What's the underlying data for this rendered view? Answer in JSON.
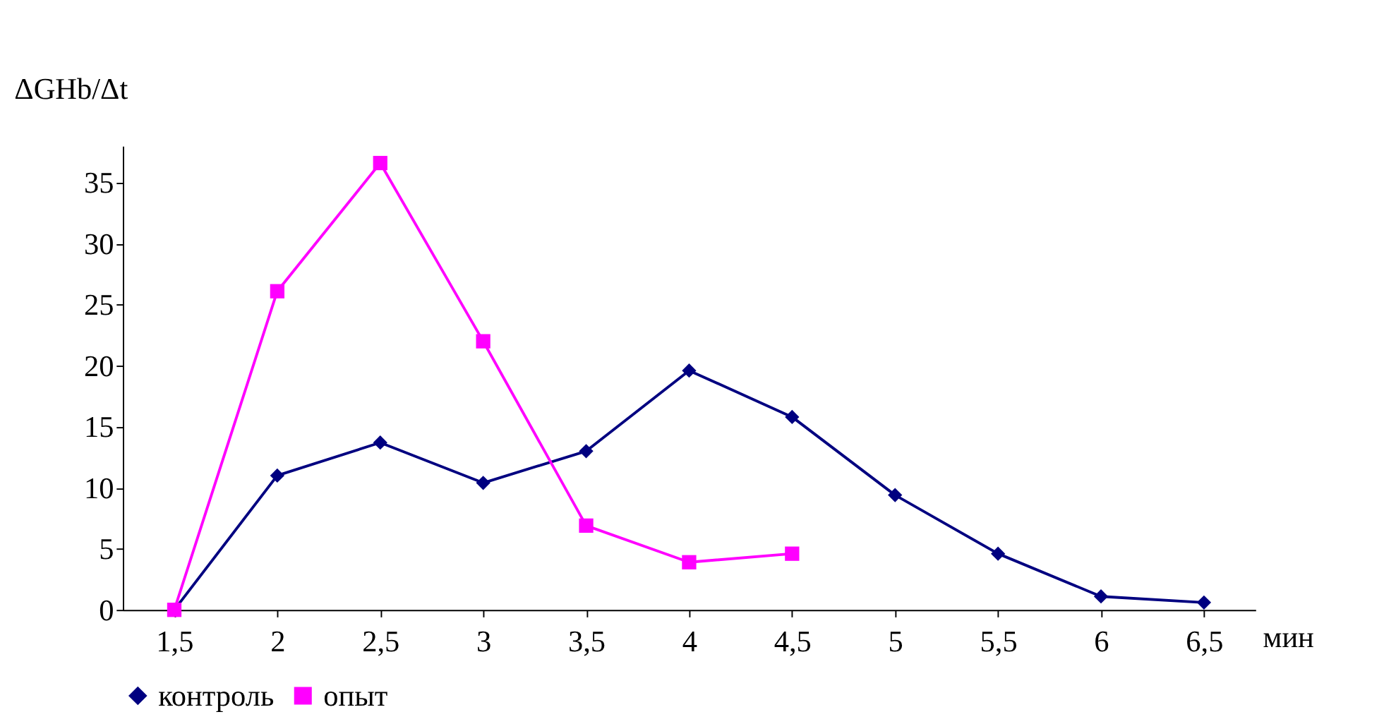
{
  "chart_data": {
    "type": "line",
    "ylabel": "ΔGHb/Δt",
    "xlabel": "мин",
    "categories": [
      "1,5",
      "2",
      "2,5",
      "3",
      "3,5",
      "4",
      "4,5",
      "5",
      "5,5",
      "6",
      "6,5"
    ],
    "series": [
      {
        "name": "контроль",
        "color": "#000080",
        "marker": "diamond",
        "values": [
          0,
          11,
          13.7,
          10.4,
          13,
          19.6,
          15.8,
          9.4,
          4.6,
          1.1,
          0.6
        ]
      },
      {
        "name": "опыт",
        "color": "#ff00ff",
        "marker": "square",
        "values": [
          0,
          26.1,
          36.6,
          22,
          6.9,
          3.9,
          4.6,
          null,
          null,
          null,
          null
        ]
      }
    ],
    "ylim": [
      0,
      38
    ],
    "yticks": [
      0,
      5,
      10,
      15,
      20,
      25,
      30,
      35
    ],
    "grid": false,
    "legend": "bottom",
    "line_style": "solid"
  }
}
